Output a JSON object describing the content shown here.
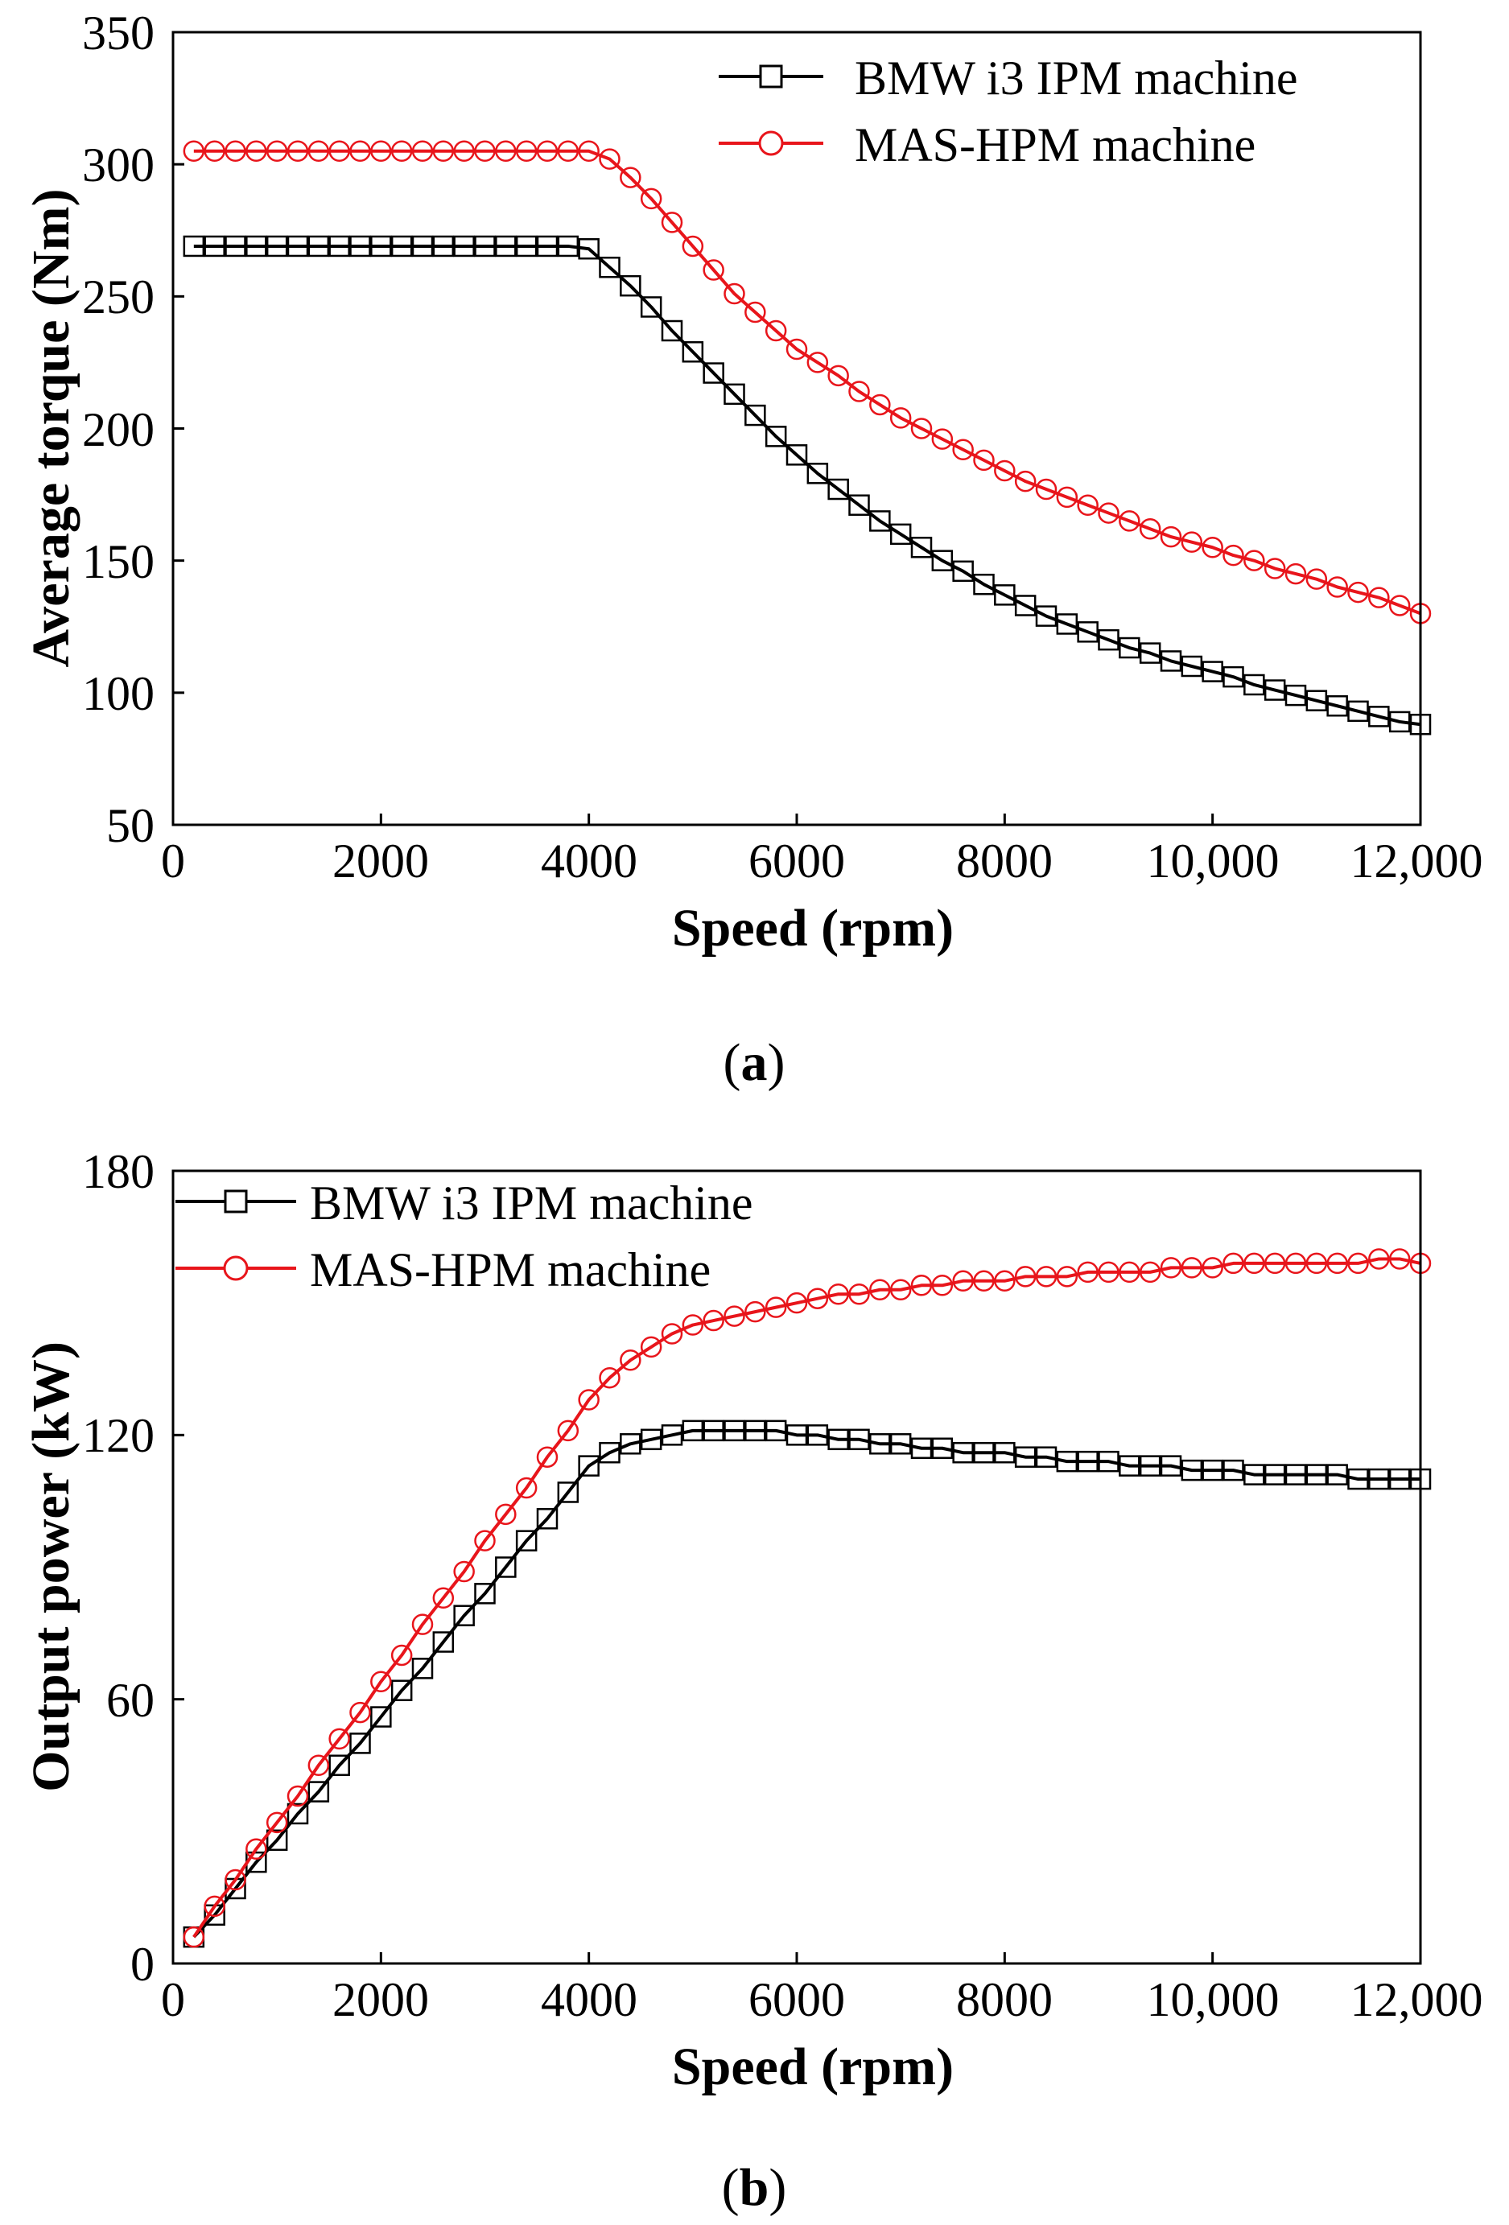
{
  "charts": [
    {
      "id": "a",
      "caption_letter": "a",
      "xlabel": "Speed (rpm)",
      "ylabel": "Average torque (Nm)",
      "xticks": [
        "0",
        "2000",
        "4000",
        "6000",
        "8000",
        "10,000",
        "12,000"
      ],
      "yticks": [
        "50",
        "100",
        "150",
        "200",
        "250",
        "300",
        "350"
      ],
      "legend": [
        "BMW i3 IPM machine",
        "MAS-HPM machine"
      ]
    },
    {
      "id": "b",
      "caption_letter": "b",
      "xlabel": "Speed (rpm)",
      "ylabel": "Output power (kW)",
      "xticks": [
        "0",
        "2000",
        "4000",
        "6000",
        "8000",
        "10,000",
        "12,000"
      ],
      "yticks": [
        "0",
        "60",
        "120",
        "180"
      ],
      "legend": [
        "BMW i3 IPM machine",
        "MAS-HPM machine"
      ]
    }
  ],
  "colors": {
    "series_black": "#000000",
    "series_red": "#e8151b"
  },
  "chart_data": [
    {
      "type": "line",
      "title": "",
      "xlabel": "Speed (rpm)",
      "ylabel": "Average torque (Nm)",
      "xlim": [
        0,
        12000
      ],
      "ylim": [
        50,
        350
      ],
      "legend_position": "top-right",
      "series": [
        {
          "name": "BMW i3 IPM machine",
          "color": "#000000",
          "marker": "square",
          "x": [
            200,
            400,
            600,
            800,
            1000,
            1200,
            1400,
            1600,
            1800,
            2000,
            2200,
            2400,
            2600,
            2800,
            3000,
            3200,
            3400,
            3600,
            3800,
            4000,
            4200,
            4400,
            4600,
            4800,
            5000,
            5200,
            5400,
            5600,
            5800,
            6000,
            6200,
            6400,
            6600,
            6800,
            7000,
            7200,
            7400,
            7600,
            7800,
            8000,
            8200,
            8400,
            8600,
            8800,
            9000,
            9200,
            9400,
            9600,
            9800,
            10000,
            10200,
            10400,
            10600,
            10800,
            11000,
            11200,
            11400,
            11600,
            11800,
            12000
          ],
          "y": [
            269,
            269,
            269,
            269,
            269,
            269,
            269,
            269,
            269,
            269,
            269,
            269,
            269,
            269,
            269,
            269,
            269,
            269,
            269,
            268,
            261,
            254,
            246,
            237,
            229,
            221,
            213,
            205,
            197,
            190,
            183,
            177,
            171,
            165,
            160,
            155,
            150,
            146,
            141,
            137,
            133,
            129,
            126,
            123,
            120,
            117,
            115,
            112,
            110,
            108,
            106,
            103,
            101,
            99,
            97,
            95,
            93,
            91,
            89,
            88
          ]
        },
        {
          "name": "MAS-HPM machine",
          "color": "#e8151b",
          "marker": "circle",
          "x": [
            200,
            400,
            600,
            800,
            1000,
            1200,
            1400,
            1600,
            1800,
            2000,
            2200,
            2400,
            2600,
            2800,
            3000,
            3200,
            3400,
            3600,
            3800,
            4000,
            4200,
            4400,
            4600,
            4800,
            5000,
            5200,
            5400,
            5600,
            5800,
            6000,
            6200,
            6400,
            6600,
            6800,
            7000,
            7200,
            7400,
            7600,
            7800,
            8000,
            8200,
            8400,
            8600,
            8800,
            9000,
            9200,
            9400,
            9600,
            9800,
            10000,
            10200,
            10400,
            10600,
            10800,
            11000,
            11200,
            11400,
            11600,
            11800,
            12000
          ],
          "y": [
            305,
            305,
            305,
            305,
            305,
            305,
            305,
            305,
            305,
            305,
            305,
            305,
            305,
            305,
            305,
            305,
            305,
            305,
            305,
            305,
            302,
            295,
            287,
            278,
            269,
            260,
            251,
            244,
            237,
            230,
            225,
            220,
            214,
            209,
            204,
            200,
            196,
            192,
            188,
            184,
            180,
            177,
            174,
            171,
            168,
            165,
            162,
            159,
            157,
            155,
            152,
            150,
            147,
            145,
            143,
            140,
            138,
            136,
            133,
            130
          ]
        }
      ]
    },
    {
      "type": "line",
      "title": "",
      "xlabel": "Speed (rpm)",
      "ylabel": "Output power (kW)",
      "xlim": [
        0,
        12000
      ],
      "ylim": [
        0,
        180
      ],
      "legend_position": "top-left",
      "series": [
        {
          "name": "BMW i3 IPM machine",
          "color": "#000000",
          "marker": "square",
          "x": [
            200,
            400,
            600,
            800,
            1000,
            1200,
            1400,
            1600,
            1800,
            2000,
            2200,
            2400,
            2600,
            2800,
            3000,
            3200,
            3400,
            3600,
            3800,
            4000,
            4200,
            4400,
            4600,
            4800,
            5000,
            5200,
            5400,
            5600,
            5800,
            6000,
            6200,
            6400,
            6600,
            6800,
            7000,
            7200,
            7400,
            7600,
            7800,
            8000,
            8200,
            8400,
            8600,
            8800,
            9000,
            9200,
            9400,
            9600,
            9800,
            10000,
            10200,
            10400,
            10600,
            10800,
            11000,
            11200,
            11400,
            11600,
            11800,
            12000
          ],
          "y": [
            6,
            11,
            17,
            23,
            28,
            34,
            39,
            45,
            50,
            56,
            62,
            67,
            73,
            79,
            84,
            90,
            96,
            101,
            107,
            113,
            116,
            118,
            119,
            120,
            121,
            121,
            121,
            121,
            121,
            120,
            120,
            119,
            119,
            118,
            118,
            117,
            117,
            116,
            116,
            116,
            115,
            115,
            114,
            114,
            114,
            113,
            113,
            113,
            112,
            112,
            112,
            111,
            111,
            111,
            111,
            111,
            110,
            110,
            110,
            110
          ]
        },
        {
          "name": "MAS-HPM machine",
          "color": "#e8151b",
          "marker": "circle",
          "x": [
            200,
            400,
            600,
            800,
            1000,
            1200,
            1400,
            1600,
            1800,
            2000,
            2200,
            2400,
            2600,
            2800,
            3000,
            3200,
            3400,
            3600,
            3800,
            4000,
            4200,
            4400,
            4600,
            4800,
            5000,
            5200,
            5400,
            5600,
            5800,
            6000,
            6200,
            6400,
            6600,
            6800,
            7000,
            7200,
            7400,
            7600,
            7800,
            8000,
            8200,
            8400,
            8600,
            8800,
            9000,
            9200,
            9400,
            9600,
            9800,
            10000,
            10200,
            10400,
            10600,
            10800,
            11000,
            11200,
            11400,
            11600,
            11800,
            12000
          ],
          "y": [
            6,
            13,
            19,
            26,
            32,
            38,
            45,
            51,
            57,
            64,
            70,
            77,
            83,
            89,
            96,
            102,
            108,
            115,
            121,
            128,
            133,
            137,
            140,
            143,
            145,
            146,
            147,
            148,
            149,
            150,
            151,
            152,
            152,
            153,
            153,
            154,
            154,
            155,
            155,
            155,
            156,
            156,
            156,
            157,
            157,
            157,
            157,
            158,
            158,
            158,
            159,
            159,
            159,
            159,
            159,
            159,
            159,
            160,
            160,
            159
          ]
        }
      ]
    }
  ]
}
